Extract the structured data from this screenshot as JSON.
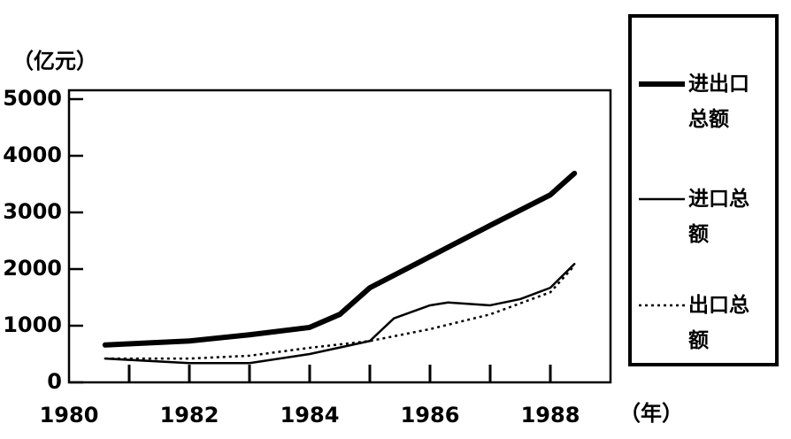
{
  "chart_data": {
    "type": "line",
    "y_label": "（亿元）",
    "x_label": "（年）",
    "xlim": [
      1980,
      1989
    ],
    "xticks": [
      1980,
      1982,
      1984,
      1986,
      1988
    ],
    "x_minor_ticks": [
      1981,
      1983,
      1985,
      1987
    ],
    "ylim": [
      0,
      5000
    ],
    "yticks": [
      0,
      1000,
      2000,
      3000,
      4000,
      5000
    ],
    "series": [
      {
        "name": "进出口总额",
        "color": "#000000",
        "style": "solid",
        "width": 6,
        "x": [
          1980.6,
          1982,
          1983,
          1984,
          1984.5,
          1985,
          1986,
          1987,
          1988,
          1988.4
        ],
        "values": [
          660,
          730,
          840,
          970,
          1200,
          1670,
          2220,
          2770,
          3310,
          3690
        ]
      },
      {
        "name": "进口总额",
        "color": "#000000",
        "style": "solid",
        "width": 2.5,
        "x": [
          1980.6,
          1982,
          1983,
          1984,
          1985,
          1985.4,
          1986,
          1986.3,
          1987,
          1987.5,
          1988,
          1988.4
        ],
        "values": [
          420,
          340,
          340,
          500,
          730,
          1130,
          1360,
          1410,
          1360,
          1470,
          1670,
          2090
        ]
      },
      {
        "name": "出口总额",
        "color": "#000000",
        "style": "dotted",
        "width": 2.5,
        "x": [
          1980.6,
          1982,
          1983,
          1984,
          1985,
          1986,
          1987,
          1988,
          1988.4
        ],
        "values": [
          420,
          420,
          470,
          610,
          730,
          940,
          1200,
          1590,
          2060
        ]
      }
    ]
  }
}
